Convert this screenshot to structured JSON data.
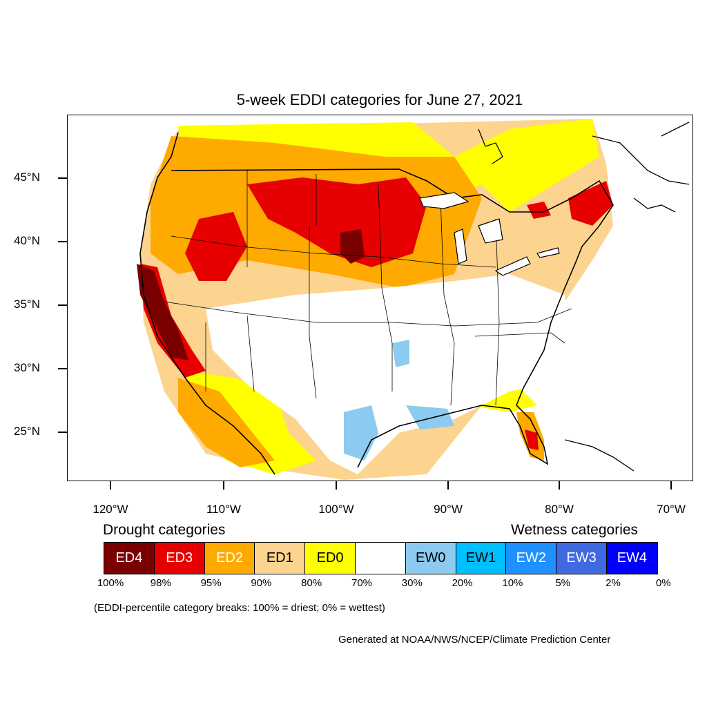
{
  "title": "5-week EDDI categories for June 27, 2021",
  "axes": {
    "lat_labels": [
      "45°N",
      "40°N",
      "35°N",
      "30°N",
      "25°N"
    ],
    "lon_labels": [
      "120°W",
      "110°W",
      "100°W",
      "90°W",
      "80°W",
      "70°W"
    ]
  },
  "legend": {
    "drought_heading": "Drought categories",
    "wetness_heading": "Wetness categories",
    "categories": [
      {
        "label": "ED4",
        "color": "#7a0000",
        "text_color": "#ffffff"
      },
      {
        "label": "ED3",
        "color": "#e60000",
        "text_color": "#ffffff"
      },
      {
        "label": "ED2",
        "color": "#ffaa00",
        "text_color": "#ffffff"
      },
      {
        "label": "ED1",
        "color": "#fcd38f",
        "text_color": "#000000"
      },
      {
        "label": "ED0",
        "color": "#ffff00",
        "text_color": "#000000"
      },
      {
        "label": "",
        "color": "#ffffff",
        "text_color": "#000000"
      },
      {
        "label": "EW0",
        "color": "#8ccbef",
        "text_color": "#000000"
      },
      {
        "label": "EW1",
        "color": "#00bfff",
        "text_color": "#000000"
      },
      {
        "label": "EW2",
        "color": "#1e90ff",
        "text_color": "#ffffff"
      },
      {
        "label": "EW3",
        "color": "#4169e1",
        "text_color": "#ffffff"
      },
      {
        "label": "EW4",
        "color": "#0000ff",
        "text_color": "#ffffff"
      }
    ],
    "percent_breaks": [
      "100%",
      "98%",
      "95%",
      "90%",
      "80%",
      "70%",
      "30%",
      "20%",
      "10%",
      "5%",
      "2%",
      "0%"
    ]
  },
  "note": "(EDDI-percentile category breaks: 100% = driest; 0% = wettest)",
  "credit": "Generated at NOAA/NWS/NCEP/Climate Prediction Center"
}
